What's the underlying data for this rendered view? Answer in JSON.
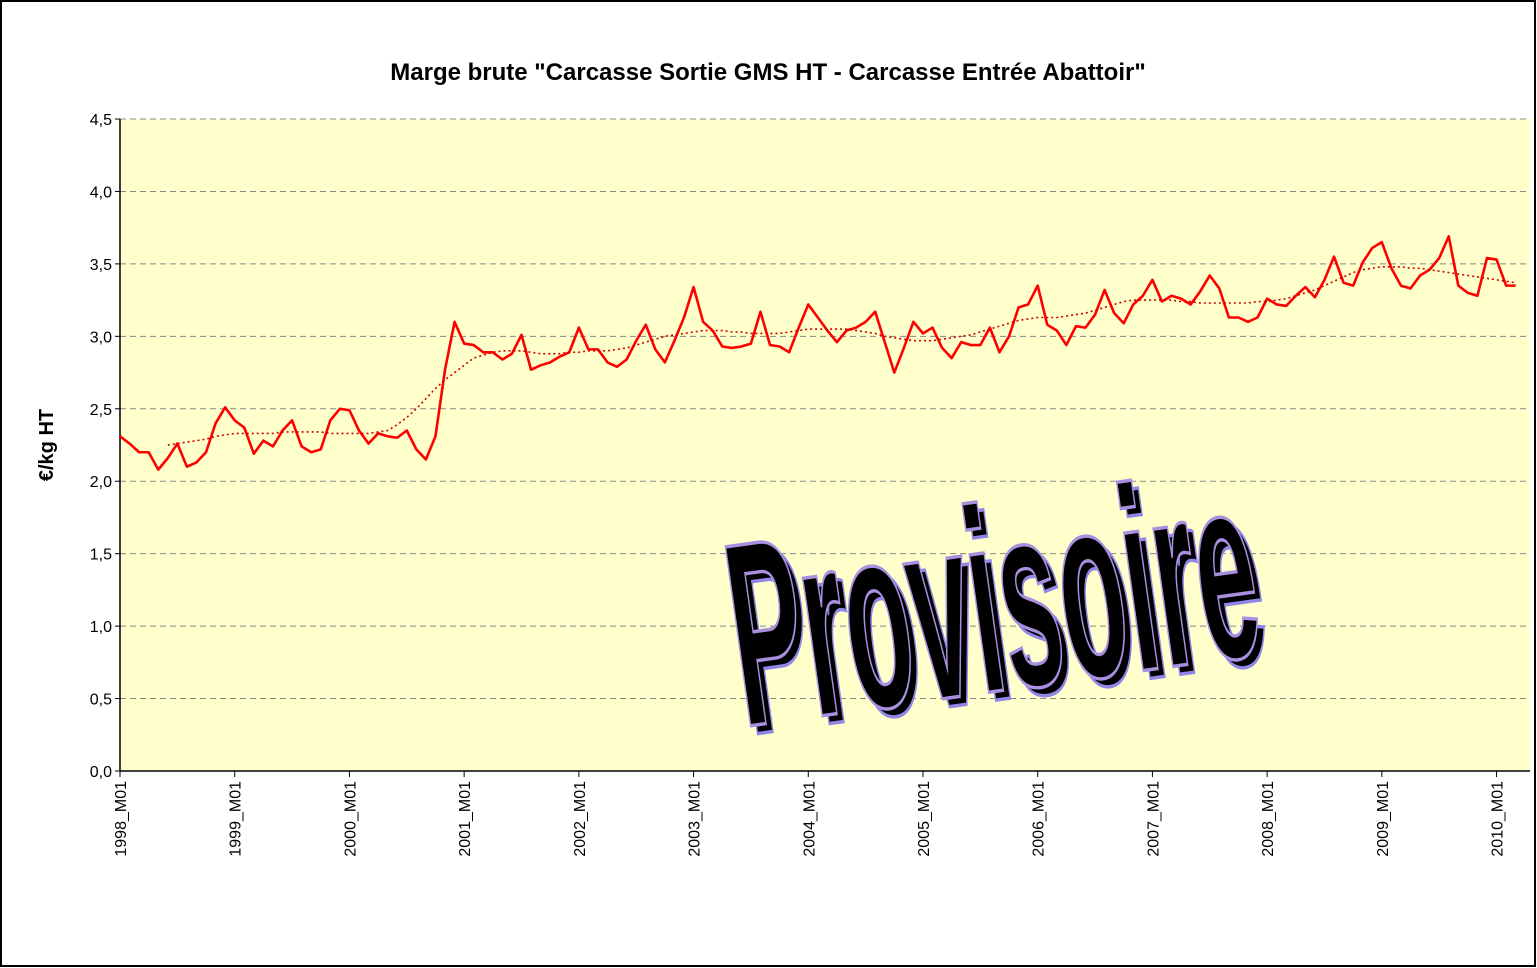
{
  "chart_data": {
    "type": "line",
    "title": "Marge brute \"Carcasse Sortie GMS HT - Carcasse Entrée Abattoir\"",
    "y_label": "€/kg HT",
    "annotation": "Provisoire",
    "categories": [
      "1998_M01",
      null,
      null,
      null,
      null,
      null,
      null,
      null,
      null,
      null,
      null,
      null,
      "1999_M01",
      null,
      null,
      null,
      null,
      null,
      null,
      null,
      null,
      null,
      null,
      null,
      "2000_M01",
      null,
      null,
      null,
      null,
      null,
      null,
      null,
      null,
      null,
      null,
      null,
      "2001_M01",
      null,
      null,
      null,
      null,
      null,
      null,
      null,
      null,
      null,
      null,
      null,
      "2002_M01",
      null,
      null,
      null,
      null,
      null,
      null,
      null,
      null,
      null,
      null,
      null,
      "2003_M01",
      null,
      null,
      null,
      null,
      null,
      null,
      null,
      null,
      null,
      null,
      null,
      "2004_M01",
      null,
      null,
      null,
      null,
      null,
      null,
      null,
      null,
      null,
      null,
      null,
      "2005_M01",
      null,
      null,
      null,
      null,
      null,
      null,
      null,
      null,
      null,
      null,
      null,
      "2006_M01",
      null,
      null,
      null,
      null,
      null,
      null,
      null,
      null,
      null,
      null,
      null,
      "2007_M01",
      null,
      null,
      null,
      null,
      null,
      null,
      null,
      null,
      null,
      null,
      null,
      "2008_M01",
      null,
      null,
      null,
      null,
      null,
      null,
      null,
      null,
      null,
      null,
      null,
      "2009_M01",
      null,
      null,
      null,
      null,
      null,
      null,
      null,
      null,
      null,
      null,
      null,
      "2010_M01",
      null,
      null
    ],
    "series": [
      {
        "color": "#ff0000",
        "dash": "solid",
        "values": [
          2.31,
          2.26,
          2.2,
          2.2,
          2.08,
          2.16,
          2.26,
          2.1,
          2.13,
          2.2,
          2.4,
          2.51,
          2.42,
          2.37,
          2.19,
          2.28,
          2.24,
          2.35,
          2.42,
          2.24,
          2.2,
          2.22,
          2.42,
          2.5,
          2.49,
          2.35,
          2.26,
          2.33,
          2.31,
          2.3,
          2.35,
          2.22,
          2.15,
          2.31,
          2.77,
          3.1,
          2.95,
          2.94,
          2.89,
          2.89,
          2.84,
          2.88,
          3.01,
          2.77,
          2.8,
          2.82,
          2.86,
          2.89,
          3.06,
          2.91,
          2.91,
          2.82,
          2.79,
          2.84,
          2.97,
          3.08,
          2.91,
          2.82,
          2.97,
          3.13,
          3.34,
          3.1,
          3.04,
          2.93,
          2.92,
          2.93,
          2.95,
          3.17,
          2.94,
          2.93,
          2.89,
          3.06,
          3.22,
          3.13,
          3.04,
          2.96,
          3.04,
          3.06,
          3.1,
          3.17,
          2.96,
          2.75,
          2.92,
          3.1,
          3.02,
          3.06,
          2.92,
          2.85,
          2.96,
          2.94,
          2.94,
          3.06,
          2.89,
          3.0,
          3.2,
          3.22,
          3.35,
          3.08,
          3.04,
          2.94,
          3.07,
          3.06,
          3.15,
          3.32,
          3.16,
          3.09,
          3.22,
          3.28,
          3.39,
          3.24,
          3.28,
          3.26,
          3.22,
          3.31,
          3.42,
          3.33,
          3.13,
          3.13,
          3.1,
          3.13,
          3.26,
          3.22,
          3.21,
          3.28,
          3.34,
          3.27,
          3.39,
          3.55,
          3.37,
          3.35,
          3.51,
          3.61,
          3.65,
          3.47,
          3.35,
          3.33,
          3.42,
          3.46,
          3.54,
          3.69,
          3.35,
          3.3,
          3.28,
          3.54,
          3.53,
          3.35,
          3.35
        ]
      },
      {
        "color": "#cc0000",
        "dash": "dotted",
        "values": [
          null,
          null,
          null,
          null,
          null,
          2.25,
          2.26,
          2.27,
          2.28,
          2.29,
          2.31,
          2.32,
          2.33,
          2.33,
          2.33,
          2.33,
          2.33,
          2.34,
          2.34,
          2.34,
          2.34,
          2.34,
          2.33,
          2.33,
          2.33,
          2.33,
          2.33,
          2.34,
          2.35,
          2.39,
          2.44,
          2.5,
          2.57,
          2.64,
          2.7,
          2.75,
          2.8,
          2.85,
          2.87,
          2.89,
          2.9,
          2.9,
          2.9,
          2.89,
          2.88,
          2.88,
          2.88,
          2.89,
          2.89,
          2.9,
          2.9,
          2.9,
          2.91,
          2.92,
          2.94,
          2.96,
          2.98,
          3.0,
          3.01,
          3.02,
          3.03,
          3.04,
          3.04,
          3.04,
          3.03,
          3.03,
          3.02,
          3.02,
          3.02,
          3.02,
          3.03,
          3.04,
          3.05,
          3.05,
          3.05,
          3.05,
          3.05,
          3.04,
          3.03,
          3.02,
          3.0,
          2.99,
          2.98,
          2.97,
          2.97,
          2.97,
          2.98,
          2.99,
          3.0,
          3.01,
          3.03,
          3.05,
          3.07,
          3.09,
          3.11,
          3.12,
          3.13,
          3.13,
          3.13,
          3.14,
          3.15,
          3.16,
          3.18,
          3.2,
          3.22,
          3.24,
          3.25,
          3.25,
          3.25,
          3.25,
          3.25,
          3.24,
          3.24,
          3.23,
          3.23,
          3.23,
          3.23,
          3.23,
          3.23,
          3.24,
          3.24,
          3.25,
          3.26,
          3.28,
          3.3,
          3.32,
          3.35,
          3.38,
          3.41,
          3.44,
          3.46,
          3.47,
          3.48,
          3.48,
          3.48,
          3.47,
          3.47,
          3.46,
          3.45,
          3.44,
          3.43,
          3.42,
          3.41,
          3.4,
          3.39,
          3.38,
          3.37
        ]
      }
    ],
    "ylim": [
      0,
      4.5
    ],
    "yticks": [
      {
        "value": 0,
        "label": "0,0"
      },
      {
        "value": 0.5,
        "label": "0,5"
      },
      {
        "value": 1,
        "label": "1,0"
      },
      {
        "value": 1.5,
        "label": "1,5"
      },
      {
        "value": 2,
        "label": "2,0"
      },
      {
        "value": 2.5,
        "label": "2,5"
      },
      {
        "value": 3,
        "label": "3,0"
      },
      {
        "value": 3.5,
        "label": "3,5"
      },
      {
        "value": 4,
        "label": "4,0"
      },
      {
        "value": 4.5,
        "label": "4,5"
      }
    ],
    "grid": true,
    "plot_background": "#ffffcc"
  }
}
